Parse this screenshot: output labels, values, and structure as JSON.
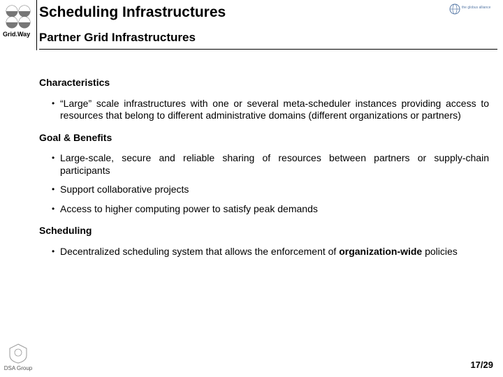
{
  "brand": {
    "gridway_label": "Grid.Way",
    "globus_text": "the globus alliance",
    "dsa_label": "DSA Group"
  },
  "colors": {
    "text": "#000000",
    "background": "#ffffff",
    "rule": "#000000",
    "logo_fill": "#666666",
    "globus_blue": "#5b7ca8"
  },
  "title": "Scheduling Infrastructures",
  "subtitle": "Partner Grid Infrastructures",
  "sections": [
    {
      "heading": "Characteristics",
      "bullets": [
        "“Large” scale infrastructures with one or several meta-scheduler instances providing access to resources that belong to different administrative domains (different organizations or partners)"
      ]
    },
    {
      "heading": "Goal & Benefits",
      "bullets": [
        "Large-scale, secure and reliable sharing of resources between partners or supply-chain participants",
        "Support collaborative projects",
        "Access to higher computing power to satisfy peak demands"
      ]
    },
    {
      "heading": "Scheduling",
      "bullets": [
        "Decentralized scheduling system that allows the enforcement of <b>organization-wide</b> policies"
      ]
    }
  ],
  "page": {
    "current": 17,
    "total": 29,
    "sep": "/"
  }
}
